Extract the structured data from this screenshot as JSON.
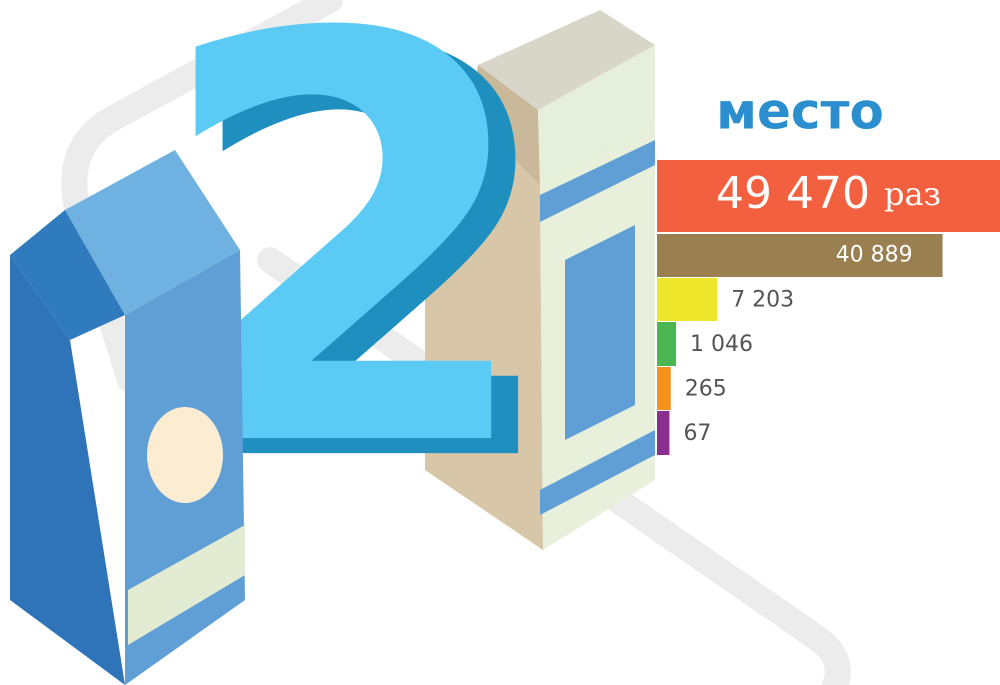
{
  "chart_data": {
    "type": "bar",
    "orientation": "horizontal",
    "rank": "2",
    "title": "место",
    "unit": "раз",
    "values": [
      49470,
      40889,
      7203,
      1046,
      265,
      67
    ],
    "value_labels": [
      "49 470",
      "40 889",
      "7 203",
      "1 046",
      "265",
      "67"
    ],
    "colors": [
      "#f2603f",
      "#9a7f50",
      "#ede62a",
      "#4ab752",
      "#f5921e",
      "#8b2f8e"
    ]
  }
}
